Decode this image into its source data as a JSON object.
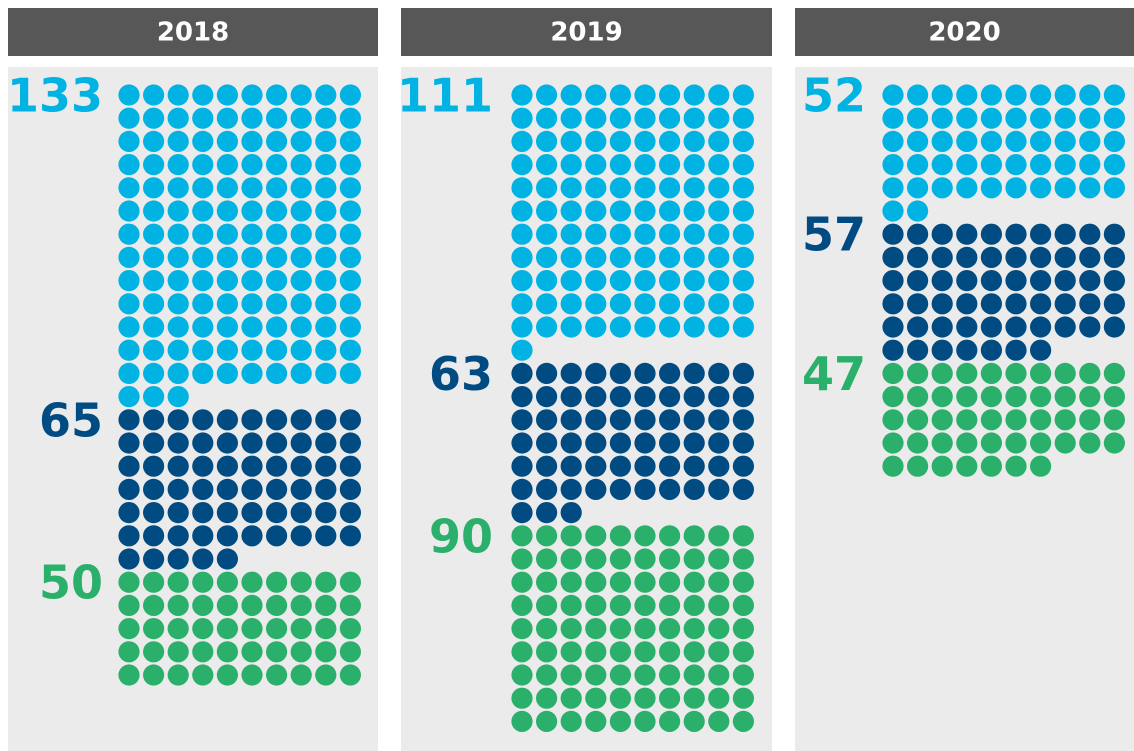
{
  "chart_data": {
    "type": "waffle",
    "categories": [
      "2018",
      "2019",
      "2020"
    ],
    "series": [
      {
        "color": "#00b3e3",
        "values": [
          133,
          111,
          52
        ]
      },
      {
        "color": "#004b82",
        "values": [
          65,
          63,
          57
        ]
      },
      {
        "color": "#2bb06c",
        "values": [
          50,
          90,
          47
        ]
      }
    ]
  }
}
